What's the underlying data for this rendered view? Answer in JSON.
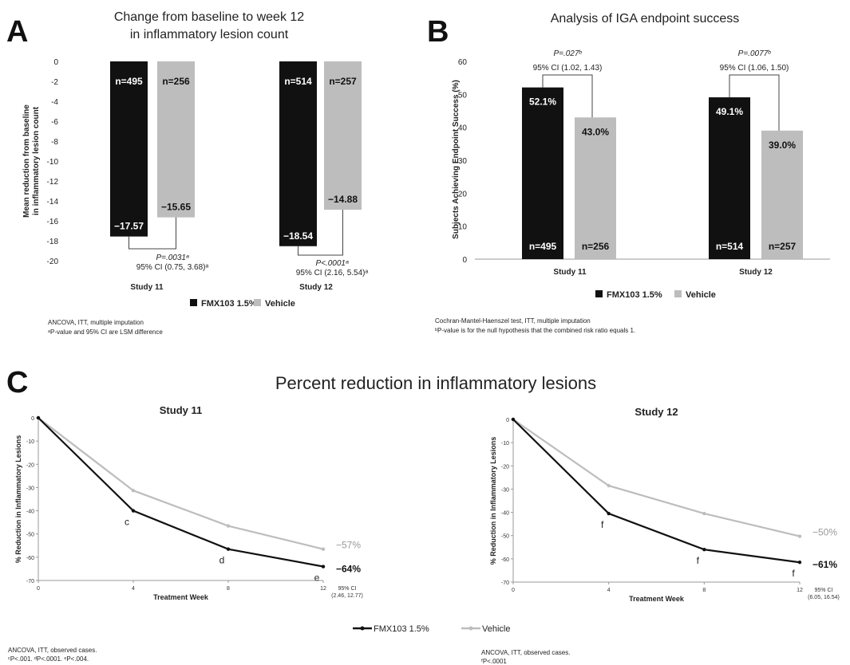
{
  "colors": {
    "fmx": "#111111",
    "vehicle": "#bdbdbd",
    "axis": "#999999"
  },
  "panel_a": {
    "letter": "A",
    "title_line1": "Change from baseline to week 12",
    "title_line2": "in inflammatory lesion count",
    "ylabel_line1": "Mean reduction from baseline",
    "ylabel_line2": "in inflammatory lesion count",
    "footnote_line1": "ANCOVA, ITT, multiple imputation",
    "footnote_line2": "ᵃP-value and 95% CI are LSM difference"
  },
  "panel_b": {
    "letter": "B",
    "title": "Analysis of IGA endpoint success",
    "ylabel": "Subjects Achieving Endpoint Success (%)",
    "footnote_line1": "Cochran-Mantel-Haenszel test, ITT, multiple imputation",
    "footnote_line2": "ᵇP-value is for the null hypothesis that the combined risk ratio equals 1."
  },
  "panel_c": {
    "letter": "C",
    "title": "Percent reduction in inflammatory lesions",
    "legend_fmx": "FMX103 1.5%",
    "legend_vehicle": "Vehicle",
    "footnote_left_line1": "ANCOVA, ITT, observed cases.",
    "footnote_left_line2": "ᶜP<.001. ᵈP<.0001. ᵉP<.004.",
    "footnote_right_line1": "ANCOVA, ITT, observed cases.",
    "footnote_right_line2": "ᶠP<.0001"
  },
  "legend_ab": {
    "fmx": "FMX103 1.5%",
    "vehicle": "Vehicle"
  },
  "chart_data": [
    {
      "type": "bar",
      "title": "Change from baseline to week 12 in inflammatory lesion count",
      "ylabel": "Mean reduction from baseline in inflammatory lesion count",
      "categories": [
        "Study 11",
        "Study 12"
      ],
      "ylim": [
        -20,
        0
      ],
      "yticks": [
        0,
        -2,
        -4,
        -6,
        -8,
        -10,
        -12,
        -14,
        -16,
        -18,
        -20
      ],
      "series": [
        {
          "name": "FMX103 1.5%",
          "values": [
            -17.57,
            -18.54
          ],
          "value_labels": [
            "−17.57",
            "−18.54"
          ],
          "n_labels": [
            "n=495",
            "n=514"
          ]
        },
        {
          "name": "Vehicle",
          "values": [
            -15.65,
            -14.88
          ],
          "value_labels": [
            "−15.65",
            "−14.88"
          ],
          "n_labels": [
            "n=256",
            "n=257"
          ]
        }
      ],
      "annotations": [
        {
          "p": "P=.0031ᵃ",
          "ci": "95% CI (0.75, 3.68)ᵃ"
        },
        {
          "p": "P<.0001ᵃ",
          "ci": "95% CI (2.16, 5.54)ᵃ"
        }
      ],
      "legend": "bottom"
    },
    {
      "type": "bar",
      "title": "Analysis of IGA endpoint success",
      "ylabel": "Subjects Achieving Endpoint Success (%)",
      "categories": [
        "Study 11",
        "Study 12"
      ],
      "ylim": [
        0,
        60
      ],
      "yticks": [
        0,
        10,
        20,
        30,
        40,
        50,
        60
      ],
      "series": [
        {
          "name": "FMX103 1.5%",
          "values": [
            52.1,
            49.1
          ],
          "value_labels": [
            "52.1%",
            "49.1%"
          ],
          "n_labels": [
            "n=495",
            "n=514"
          ]
        },
        {
          "name": "Vehicle",
          "values": [
            43.0,
            39.0
          ],
          "value_labels": [
            "43.0%",
            "39.0%"
          ],
          "n_labels": [
            "n=256",
            "n=257"
          ]
        }
      ],
      "annotations": [
        {
          "p": "P=.027ᵇ",
          "ci": "95% CI (1.02, 1.43)"
        },
        {
          "p": "P=.0077ᵇ",
          "ci": "95% CI (1.06, 1.50)"
        }
      ],
      "legend": "bottom"
    },
    {
      "type": "line",
      "title": "Study 11",
      "xlabel": "Treatment Week",
      "ylabel": "% Reduction in Inflammatory Lesions",
      "x": [
        0,
        4,
        8,
        12
      ],
      "xlim": [
        0,
        12
      ],
      "ylim": [
        -70,
        0
      ],
      "yticks": [
        0,
        -10,
        -20,
        -30,
        -40,
        -50,
        -60,
        -70
      ],
      "series": [
        {
          "name": "FMX103 1.5%",
          "values": [
            0,
            -40,
            -56.5,
            -64
          ],
          "marks": [
            "",
            "c",
            "d",
            "e"
          ],
          "end_label": "−64%"
        },
        {
          "name": "Vehicle",
          "values": [
            0,
            -31.3,
            -46.5,
            -56.5
          ],
          "end_label": "−57%"
        }
      ],
      "ci_line1": "95% CI",
      "ci_line2": "(2.46, 12.77)"
    },
    {
      "type": "line",
      "title": "Study 12",
      "xlabel": "Treatment Week",
      "ylabel": "% Reduction in Inflammatory Lesions",
      "x": [
        0,
        4,
        8,
        12
      ],
      "xlim": [
        0,
        12
      ],
      "ylim": [
        -70,
        0
      ],
      "yticks": [
        0,
        -10,
        -20,
        -30,
        -40,
        -50,
        -60,
        -70
      ],
      "series": [
        {
          "name": "FMX103 1.5%",
          "values": [
            0,
            -40.5,
            -56,
            -61.5
          ],
          "marks": [
            "",
            "f",
            "f",
            "f"
          ],
          "end_label": "−61%"
        },
        {
          "name": "Vehicle",
          "values": [
            0,
            -28.5,
            -40.5,
            -50.3
          ],
          "end_label": "−50%"
        }
      ],
      "ci_line1": "95% CI",
      "ci_line2": "(6.05, 16.54)"
    }
  ]
}
